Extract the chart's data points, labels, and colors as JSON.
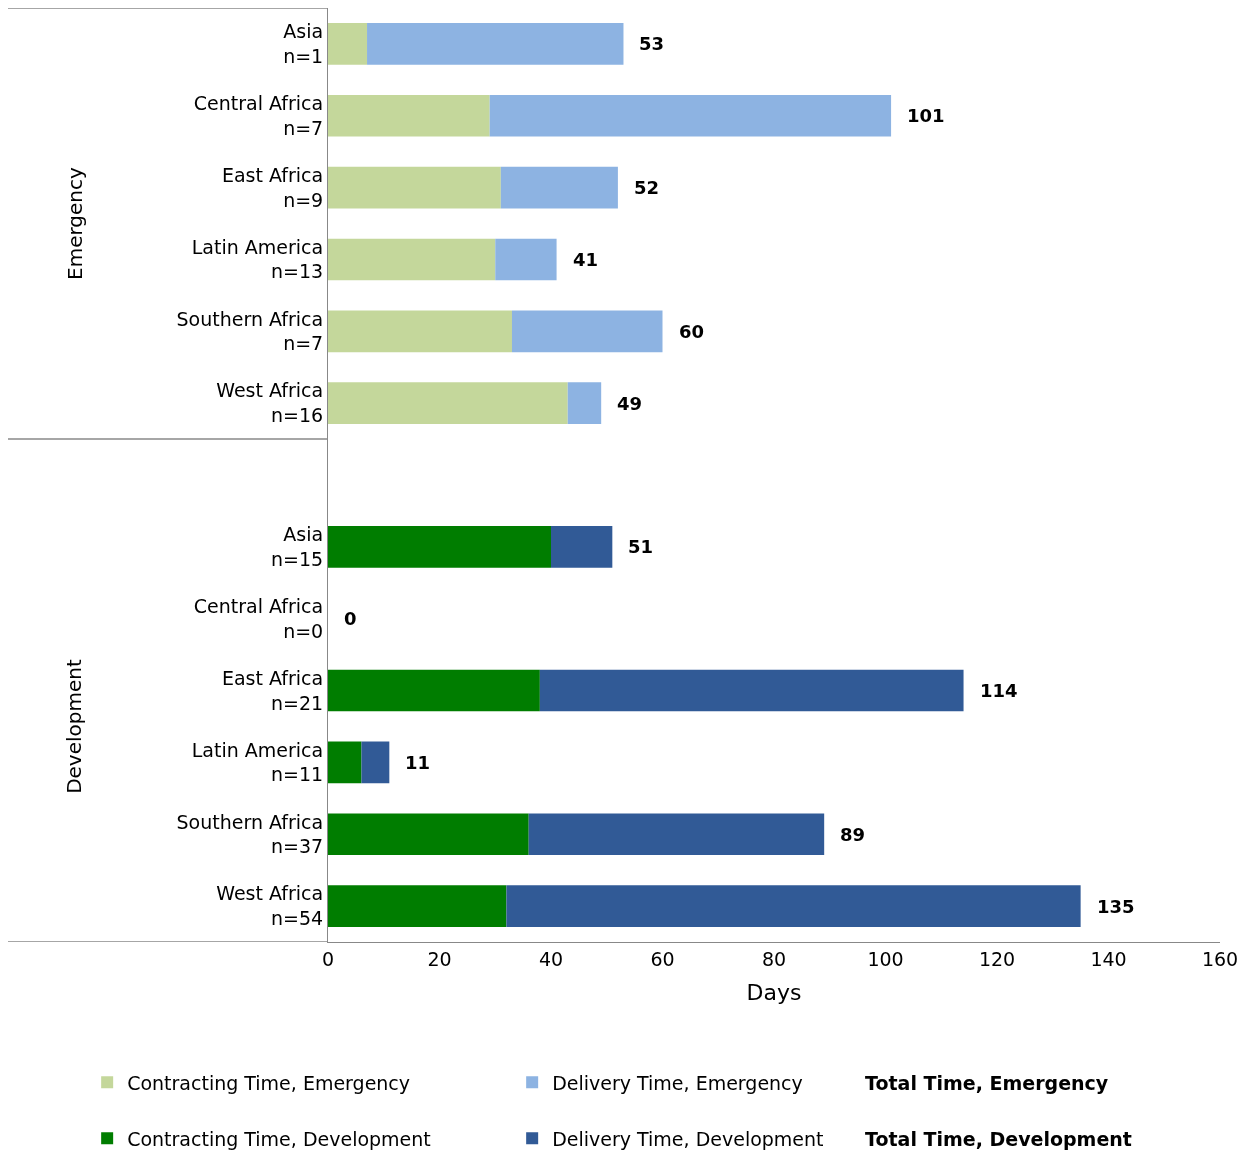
{
  "chart_data": {
    "type": "bar",
    "orientation": "horizontal",
    "stacked": true,
    "categories": [
      "Asia\nn=1",
      "Central Africa\nn=7",
      "East Africa\nn=9",
      "Latin America\nn=13",
      "Southern Africa\nn=7",
      "West Africa\nn=16",
      null,
      "Asia\nn=15",
      "Central Africa\nn=0",
      "East Africa\nn=21",
      "Latin America\nn=11",
      "Southern Africa\nn=37",
      "West Africa\nn=54"
    ],
    "series": [
      {
        "name": "Contracting Time, Emergency",
        "color": "#c4d79b",
        "values": [
          7,
          29,
          31,
          30,
          33,
          43,
          null,
          null,
          null,
          null,
          null,
          null,
          null
        ]
      },
      {
        "name": "Delivery Time, Emergency",
        "color": "#8db3e2",
        "values": [
          46,
          72,
          21,
          11,
          27,
          6,
          null,
          null,
          null,
          null,
          null,
          null,
          null
        ]
      },
      {
        "name": "Contracting Time, Development",
        "color": "#007d00",
        "values": [
          null,
          null,
          null,
          null,
          null,
          null,
          null,
          40,
          0,
          38,
          6,
          36,
          32
        ]
      },
      {
        "name": "Delivery Time, Development",
        "color": "#315a96",
        "values": [
          null,
          null,
          null,
          null,
          null,
          null,
          null,
          11,
          0,
          76,
          5,
          53,
          103
        ]
      }
    ],
    "totals": [
      "53",
      "101",
      "52",
      "41",
      "60",
      "49",
      null,
      "51",
      "0",
      "114",
      "11",
      "89",
      "135"
    ],
    "xlabel": "Days",
    "xlim": [
      0,
      160
    ],
    "xticks": [
      0,
      20,
      40,
      60,
      80,
      100,
      120,
      140,
      160
    ],
    "annotations": [
      "Emergency",
      "Development",
      "Total Time, Emergency",
      "Total Time, Development"
    ],
    "legend": "bottom"
  }
}
